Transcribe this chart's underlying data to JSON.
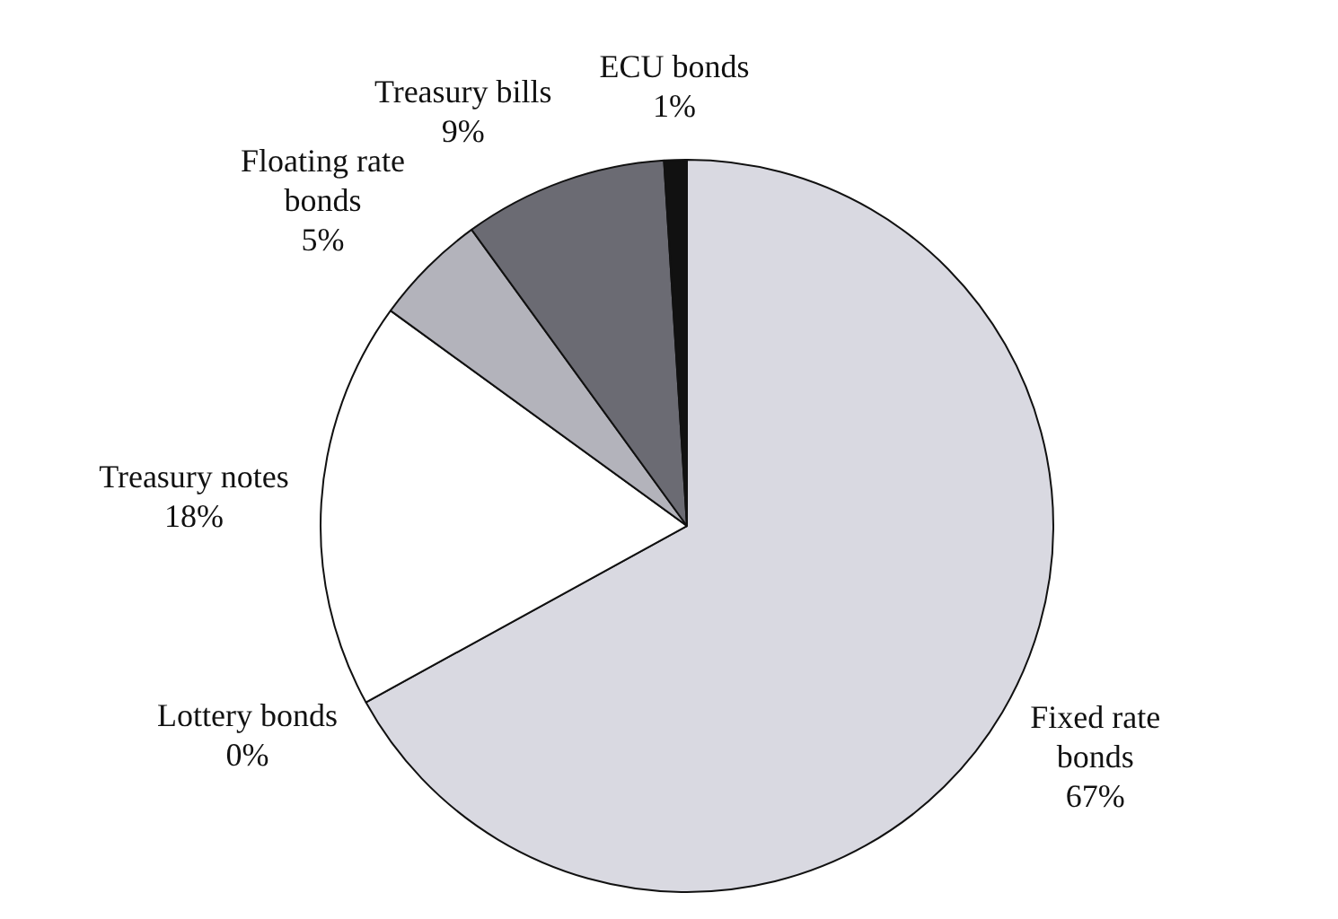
{
  "chart_data": {
    "type": "pie",
    "categories": [
      "Fixed rate bonds",
      "Lottery bonds",
      "Treasury notes",
      "Floating rate bonds",
      "Treasury bills",
      "ECU bonds"
    ],
    "values": [
      67,
      0,
      18,
      5,
      9,
      1
    ],
    "value_labels": [
      "67%",
      "0%",
      "18%",
      "5%",
      "9%",
      "1%"
    ],
    "colors": [
      "#d9d9e1",
      "#111111",
      "#ffffff",
      "#b3b3bb",
      "#6b6b73",
      "#111111"
    ],
    "legend": false
  }
}
